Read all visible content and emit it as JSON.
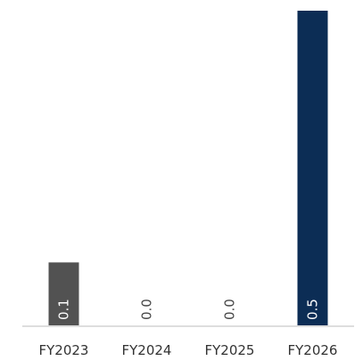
{
  "chart_data": {
    "type": "bar",
    "categories": [
      "FY2023",
      "FY2024",
      "FY2025",
      "FY2026"
    ],
    "values": [
      0.1,
      0.0,
      0.0,
      0.5
    ],
    "value_labels": [
      "0.1",
      "0.0",
      "0.0",
      "0.5"
    ],
    "colors": [
      "#525252",
      "#525252",
      "#525252",
      "#0c2d55"
    ]
  }
}
